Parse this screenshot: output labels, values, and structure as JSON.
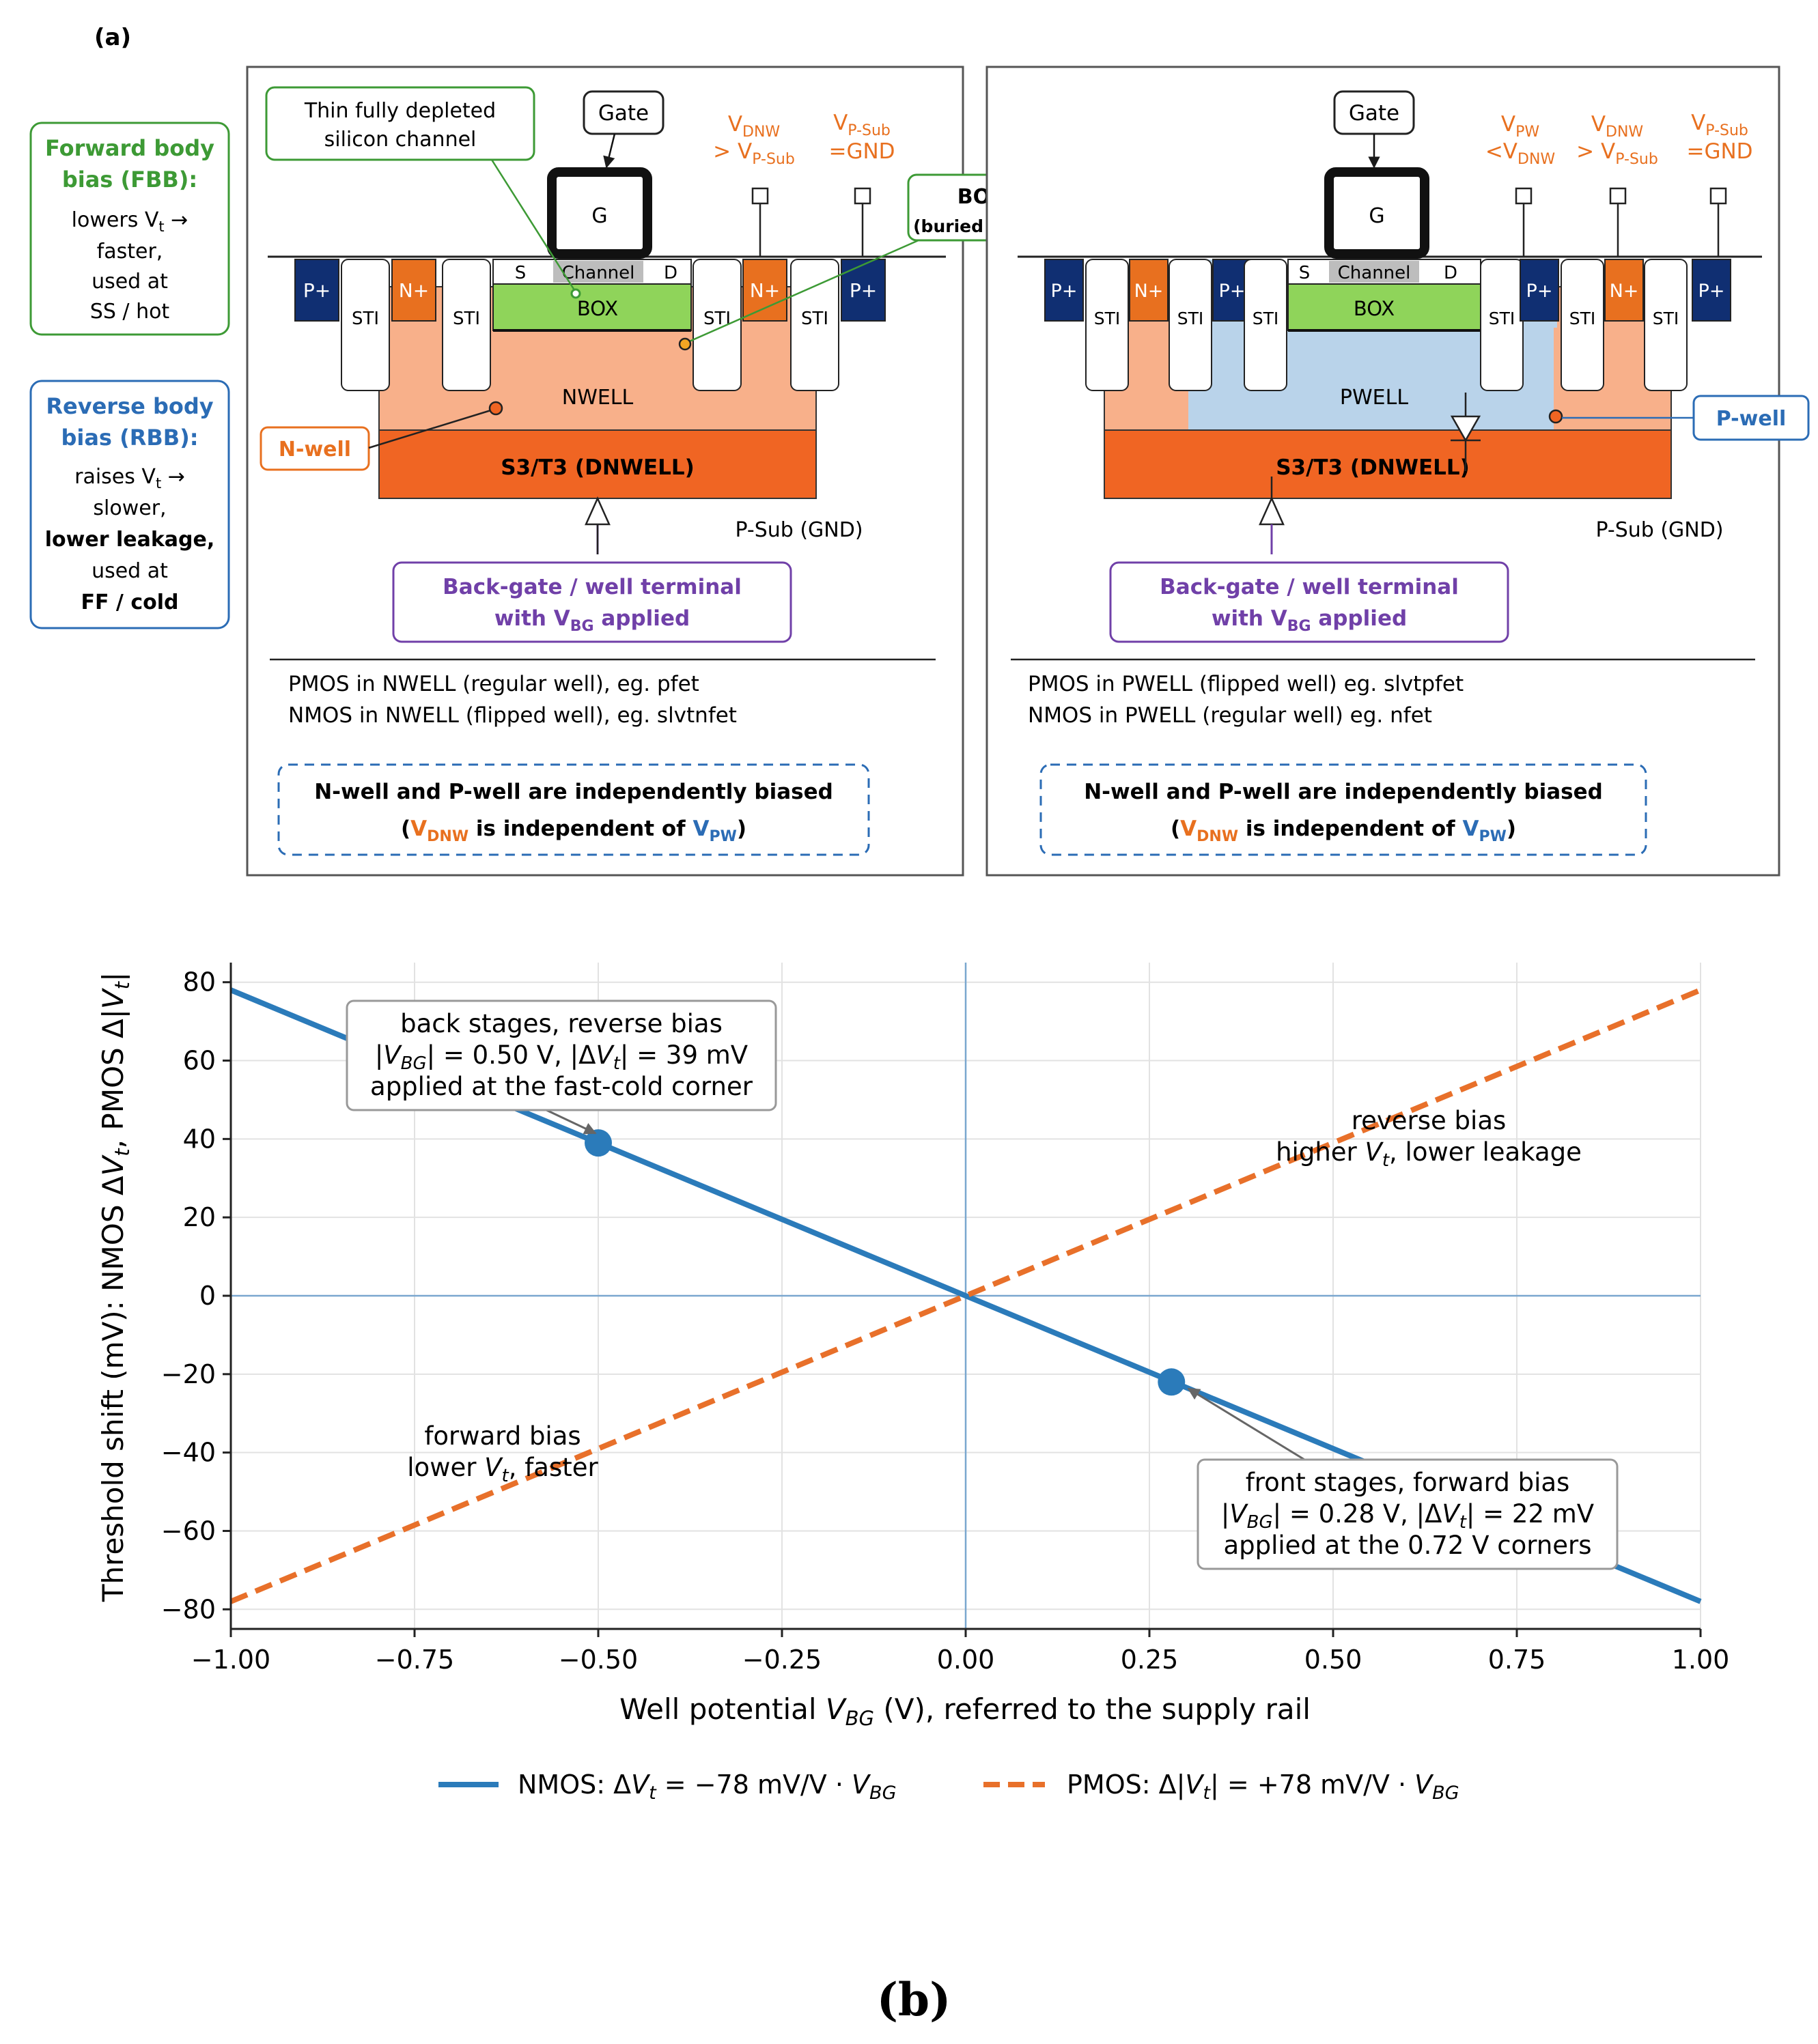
{
  "panel_a": {
    "label": "(a)",
    "fbb": {
      "title1": "Forward body",
      "title2": "bias (FBB):",
      "l1a": "lowers V",
      "l1sub": "t",
      "l1b": " →",
      "l2": "faster,",
      "l3": "used at",
      "l4": "SS / hot"
    },
    "rbb": {
      "title1": "Reverse body",
      "title2": "bias (RBB):",
      "l1a": "raises V",
      "l1sub": "t",
      "l1b": " →",
      "l2": "slower,",
      "l3": "lower leakage,",
      "l4": "used at",
      "l5": "FF / cold"
    },
    "left": {
      "gate_label": "Gate",
      "g": "G",
      "channel_callout1": "Thin fully depleted",
      "channel_callout2": "silicon channel",
      "box_callout1": "BOX",
      "box_callout2": "(buried oxide)",
      "vdnw_main": "V",
      "vdnw_sub": "DNW",
      "vdnw_l2a": "> V",
      "vdnw_l2sub": "P-Sub",
      "vpsub_main": "V",
      "vpsub_sub": "P-Sub",
      "vpsub_l2": "=GND",
      "s": "S",
      "channel": "Channel",
      "d": "D",
      "box": "BOX",
      "pplus": "P+",
      "nplus": "N+",
      "sti": "STI",
      "nwell": "NWELL",
      "dnwell": "S3/T3 (DNWELL)",
      "psub": "P-Sub (GND)",
      "nwell_callout": "N-well",
      "backgate1": "Back-gate / well terminal",
      "backgate2a": "with V",
      "backgate2sub": "BG",
      "backgate2b": " applied",
      "note1": "PMOS in NWELL (regular well), eg. pfet",
      "note2": "NMOS in NWELL (flipped well), eg. slvtnfet",
      "box_note1": "N-well and P-well are independently biased",
      "box_note2_a": "(",
      "box_note2_v1": "V",
      "box_note2_v1sub": "DNW",
      "box_note2_mid": "  is independent  of  ",
      "box_note2_v2": "V",
      "box_note2_v2sub": "PW",
      "box_note2_b": ")"
    },
    "right": {
      "gate_label": "Gate",
      "g": "G",
      "vpw_main": "V",
      "vpw_sub": "PW",
      "vpw_l2a": "<V",
      "vpw_l2sub": "DNW",
      "vdnw_main": "V",
      "vdnw_sub": "DNW",
      "vdnw_l2a": "> V",
      "vdnw_l2sub": "P-Sub",
      "vpsub_main": "V",
      "vpsub_sub": "P-Sub",
      "vpsub_l2": "=GND",
      "s": "S",
      "channel": "Channel",
      "d": "D",
      "box": "BOX",
      "pplus": "P+",
      "nplus": "N+",
      "sti": "STI",
      "pwell": "PWELL",
      "dnwell": "S3/T3 (DNWELL)",
      "psub": "P-Sub (GND)",
      "pwell_callout": "P-well",
      "backgate1": "Back-gate / well terminal",
      "backgate2a": "with V",
      "backgate2sub": "BG",
      "backgate2b": " applied",
      "note1": "PMOS in PWELL (flipped well) eg. slvtpfet",
      "note2": "NMOS in PWELL (regular well) eg. nfet",
      "box_note1": "N-well and P-well are independently biased",
      "box_note2_a": "(",
      "box_note2_v1": "V",
      "box_note2_v1sub": "DNW",
      "box_note2_mid": "  is independent  of  ",
      "box_note2_v2": "V",
      "box_note2_v2sub": "PW",
      "box_note2_b": ")"
    },
    "colors": {
      "orange": "#e8701f",
      "light_orange": "#f8b08a",
      "dnwell": "#f06523",
      "green": "#8fd45a",
      "blue_well": "#b9d3ea",
      "navy": "#102f72",
      "blue_text": "#2b6cb5",
      "green_text": "#3d9a35",
      "purple": "#7040a8"
    }
  },
  "chart_data": {
    "type": "line",
    "xlabel": "Well potential V_BG (V), referred to the supply rail",
    "ylabel": "Threshold shift (mV): NMOS ΔV_t, PMOS Δ|V_t|",
    "xlim": [
      -1.0,
      1.0
    ],
    "ylim": [
      -85,
      85
    ],
    "xticks": [
      -1.0,
      -0.75,
      -0.5,
      -0.25,
      0.0,
      0.25,
      0.5,
      0.75,
      1.0
    ],
    "xtick_labels": [
      "−1.00",
      "−0.75",
      "−0.50",
      "−0.25",
      "0.00",
      "0.25",
      "0.50",
      "0.75",
      "1.00"
    ],
    "yticks": [
      -80,
      -60,
      -40,
      -20,
      0,
      20,
      40,
      60,
      80
    ],
    "ytick_labels": [
      "−80",
      "−60",
      "−40",
      "−20",
      "0",
      "20",
      "40",
      "60",
      "80"
    ],
    "grid": true,
    "legend_position": "bottom-center",
    "series": [
      {
        "name": "NMOS: ΔV_t = −78 mV/V · V_BG",
        "x": [
          -1.0,
          1.0
        ],
        "y": [
          78,
          -78
        ],
        "color": "#2b7bba",
        "style": "solid"
      },
      {
        "name": "PMOS: Δ|V_t| = +78 mV/V · V_BG",
        "x": [
          -1.0,
          1.0
        ],
        "y": [
          -78,
          78
        ],
        "color": "#e8702a",
        "style": "dashed"
      }
    ],
    "points": [
      {
        "x": -0.5,
        "y": 39,
        "color": "#2b7bba"
      },
      {
        "x": 0.28,
        "y": -22,
        "color": "#2b7bba"
      }
    ],
    "annotations": {
      "back": {
        "l1": "back stages, reverse bias",
        "l2": "|V_BG| = 0.50 V, |ΔV_t| = 39 mV",
        "l3": "applied at the fast-cold corner"
      },
      "front": {
        "l1": "front stages, forward bias",
        "l2": "|V_BG| = 0.28 V, |ΔV_t| = 22 mV",
        "l3": "applied at the 0.72 V corners"
      },
      "reverse": {
        "l1": "reverse bias",
        "l2": "higher V_t, lower leakage"
      },
      "forward": {
        "l1": "forward bias",
        "l2": "lower V_t, faster"
      }
    }
  },
  "panel_b": {
    "label": "(b)"
  },
  "text_parts": {
    "xlabel_a": "Well potential ",
    "xlabel_v": "V",
    "xlabel_sub": "BG",
    "xlabel_b": " (V), referred to the supply rail",
    "ylabel_a": "Threshold shift (mV): NMOS Δ",
    "ylabel_v": "V",
    "ylabel_sub": "t",
    "ylabel_b": ", PMOS Δ|",
    "ylabel_v2": "V",
    "ylabel_sub2": "t",
    "ylabel_c": "|",
    "back_l2_a": "|",
    "back_l2_v": "V",
    "back_l2_sub": "BG",
    "back_l2_b": "| = 0.50 V, |Δ",
    "back_l2_v2": "V",
    "back_l2_sub2": "t",
    "back_l2_c": "| = 39 mV",
    "front_l2_a": "|",
    "front_l2_v": "V",
    "front_l2_sub": "BG",
    "front_l2_b": "| = 0.28 V, |Δ",
    "front_l2_v2": "V",
    "front_l2_sub2": "t",
    "front_l2_c": "| = 22 mV",
    "rev_l2_a": "higher ",
    "rev_l2_v": "V",
    "rev_l2_sub": "t",
    "rev_l2_b": ", lower leakage",
    "fwd_l2_a": "lower ",
    "fwd_l2_v": "V",
    "fwd_l2_sub": "t",
    "fwd_l2_b": ", faster",
    "leg1_a": "NMOS: Δ",
    "leg1_v": "V",
    "leg1_sub": "t",
    "leg1_b": " = −78 mV/V · ",
    "leg1_v2": "V",
    "leg1_sub2": "BG",
    "leg2_a": "PMOS: Δ|",
    "leg2_v": "V",
    "leg2_sub": "t",
    "leg2_b": "| = +78 mV/V · ",
    "leg2_v2": "V",
    "leg2_sub2": "BG"
  }
}
